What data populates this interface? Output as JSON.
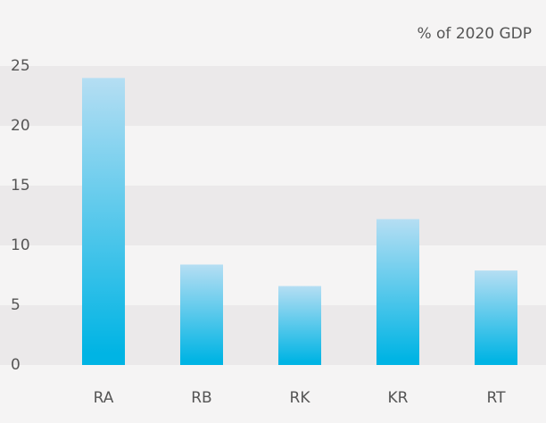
{
  "chart_data": {
    "type": "bar",
    "unit_label": "% of 2020 GDP",
    "categories": [
      "RA",
      "RB",
      "RK",
      "KR",
      "RT"
    ],
    "values": [
      24.0,
      8.4,
      6.6,
      12.2,
      7.9
    ],
    "gradient": [
      "#b5def3",
      "#00b4e4"
    ],
    "ylim": [
      0,
      25
    ],
    "yticks": [
      0,
      5,
      10,
      15,
      20,
      25
    ],
    "grid": true
  }
}
